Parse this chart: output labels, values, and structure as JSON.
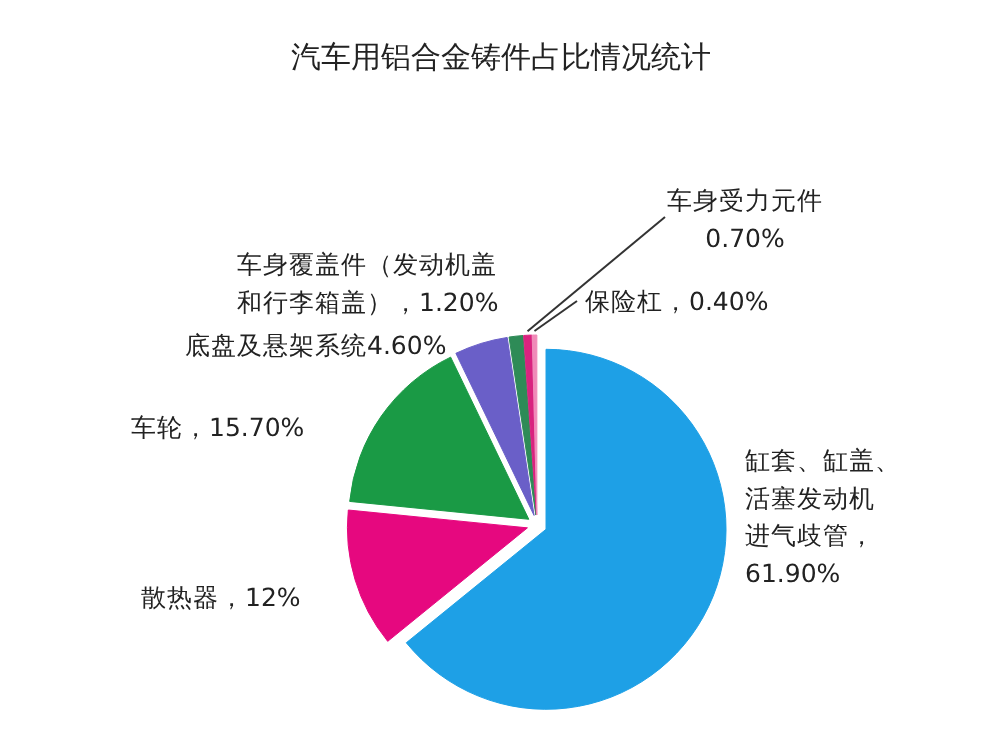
{
  "chart_data": {
    "type": "pie",
    "title": "汽车用铝合金铸件占比情况统计",
    "categories": [
      "缸套、缸盖、活塞发动机进气歧管，61.90%",
      "散热器，12%",
      "车轮，15.70%",
      "底盘及悬架系统4.60%",
      "车身覆盖件（发动机盖和行李箱盖），1.20%",
      "车身受力元件0.70%",
      "保险杠，0.40%"
    ],
    "values": [
      61.9,
      12,
      15.7,
      4.6,
      1.2,
      0.7,
      0.4
    ],
    "colors": [
      "#1ea0e6",
      "#e6087f",
      "#1a9a45",
      "#6a5fc8",
      "#2e8b57",
      "#d9237f",
      "#f08ab8"
    ]
  }
}
